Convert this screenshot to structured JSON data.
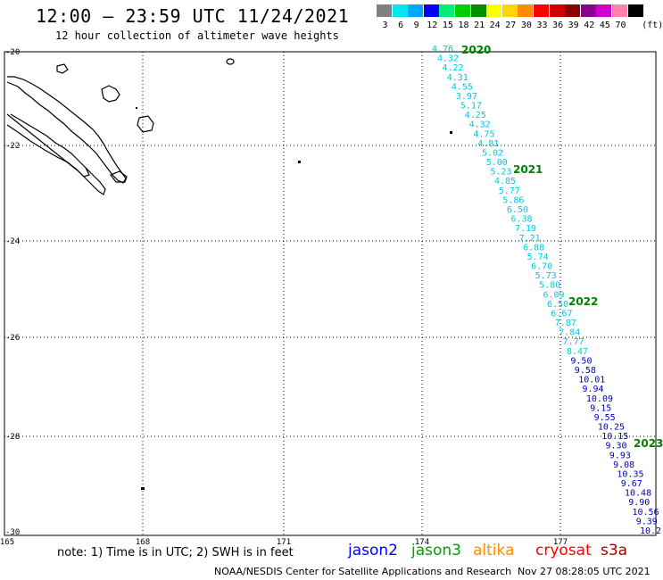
{
  "header": {
    "title": "12:00 – 23:59 UTC 11/24/2021",
    "subtitle": "12 hour collection of altimeter wave heights"
  },
  "legend": {
    "unit": "(ft)",
    "bins": [
      {
        "label": "3",
        "color": "#808080"
      },
      {
        "label": "6",
        "color": "#00e5ee"
      },
      {
        "label": "9",
        "color": "#00a8ff"
      },
      {
        "label": "12",
        "color": "#0000ff"
      },
      {
        "label": "15",
        "color": "#00ee76"
      },
      {
        "label": "18",
        "color": "#00cd00"
      },
      {
        "label": "21",
        "color": "#008b00"
      },
      {
        "label": "24",
        "color": "#ffff00"
      },
      {
        "label": "27",
        "color": "#ffd700"
      },
      {
        "label": "30",
        "color": "#ff8c00"
      },
      {
        "label": "33",
        "color": "#ff0000"
      },
      {
        "label": "36",
        "color": "#cd0000"
      },
      {
        "label": "39",
        "color": "#8b0000"
      },
      {
        "label": "42",
        "color": "#8b008b"
      },
      {
        "label": "45",
        "color": "#cd00cd"
      },
      {
        "label": "70",
        "color": "#ff82ab"
      },
      {
        "label": "",
        "color": "#000000"
      }
    ]
  },
  "map": {
    "lat_labels": [
      "-20",
      "-22",
      "-24",
      "-26",
      "-28",
      "-30"
    ],
    "lon_labels": [
      "165",
      "168",
      "171",
      "174",
      "177"
    ]
  },
  "track": {
    "color_low": "#00c8e8",
    "color_high": "#0000b4",
    "points": [
      {
        "v": "4.76"
      },
      {
        "v": "4.32"
      },
      {
        "v": "4.22"
      },
      {
        "v": "4.31"
      },
      {
        "v": "4.55"
      },
      {
        "v": "3.97"
      },
      {
        "v": "5.17"
      },
      {
        "v": "4.25"
      },
      {
        "v": "4.32"
      },
      {
        "v": "4.75"
      },
      {
        "v": "4.81"
      },
      {
        "v": "5.02"
      },
      {
        "v": "5.00"
      },
      {
        "v": "5.23"
      },
      {
        "v": "4.85"
      },
      {
        "v": "5.77"
      },
      {
        "v": "5.86"
      },
      {
        "v": "6.50"
      },
      {
        "v": "6.38"
      },
      {
        "v": "7.19"
      },
      {
        "v": "7.21"
      },
      {
        "v": "6.88"
      },
      {
        "v": "5.74"
      },
      {
        "v": "6.70"
      },
      {
        "v": "5.73"
      },
      {
        "v": "5.80"
      },
      {
        "v": "6.09"
      },
      {
        "v": "6.50"
      },
      {
        "v": "6.67"
      },
      {
        "v": "7.87"
      },
      {
        "v": "7.84"
      },
      {
        "v": "7.77"
      },
      {
        "v": "8.47"
      },
      {
        "v": "9.50"
      },
      {
        "v": "9.58"
      },
      {
        "v": "10.01"
      },
      {
        "v": "9.94"
      },
      {
        "v": "10.09"
      },
      {
        "v": "9.15"
      },
      {
        "v": "9.55"
      },
      {
        "v": "10.25"
      },
      {
        "v": "10.15"
      },
      {
        "v": "9.30"
      },
      {
        "v": "9.93"
      },
      {
        "v": "9.08"
      },
      {
        "v": "10.35"
      },
      {
        "v": "9.67"
      },
      {
        "v": "10.48"
      },
      {
        "v": "9.90"
      },
      {
        "v": "10.56"
      },
      {
        "v": "9.39"
      },
      {
        "v": "10.2"
      }
    ],
    "time_labels": [
      "2020",
      "2021",
      "2022",
      "2023"
    ]
  },
  "footer": {
    "note": "note: 1) Time is in UTC; 2) SWH is in feet",
    "satellites": [
      {
        "name": "jason2",
        "color": "#0000ff"
      },
      {
        "name": "jason3",
        "color": "#00a000"
      },
      {
        "name": "altika",
        "color": "#ff8c00"
      },
      {
        "name": "cryosat",
        "color": "#ff0000"
      },
      {
        "name": "s3a",
        "color": "#a00000"
      }
    ],
    "credit": "NOAA/NESDIS Center for Satellite Applications and Research",
    "timestamp": "Nov 27 08:28:05 UTC 2021"
  }
}
